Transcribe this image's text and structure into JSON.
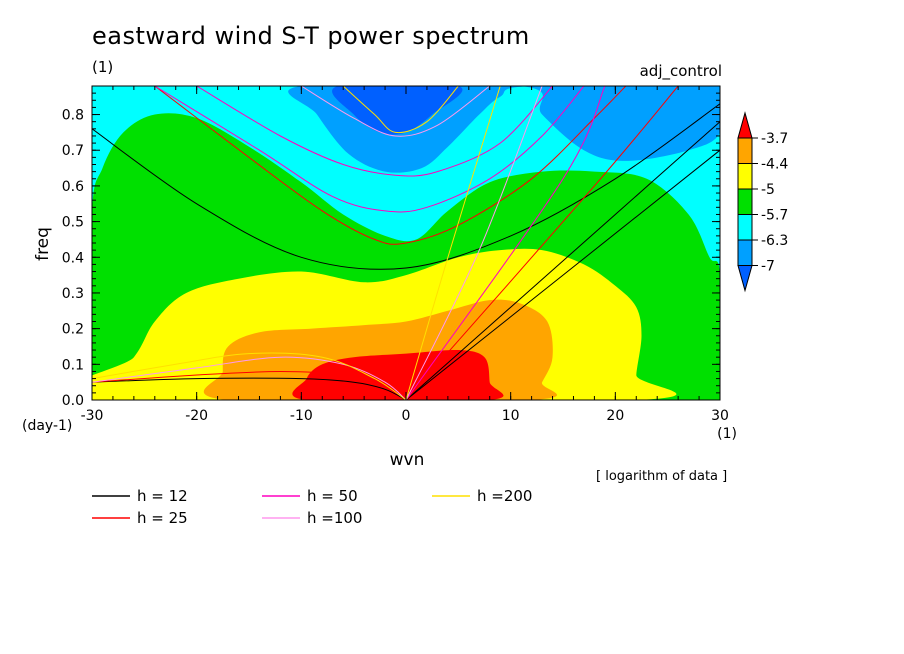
{
  "chart_data": {
    "type": "heatmap",
    "title": "eastward wind S-T power spectrum",
    "subtitle": "(1)",
    "experiment": "adj_control",
    "xlabel": "wvn",
    "xunit": "(1)",
    "ylabel": "freq",
    "yunit": "(day-1)",
    "note": "[ logarithm of data ]",
    "xlim": [
      -30,
      30
    ],
    "ylim": [
      0,
      0.88
    ],
    "xticks": [
      "-30",
      "-20",
      "-10",
      "0",
      "10",
      "20",
      "30"
    ],
    "yticks": [
      "0.0",
      "0.1",
      "0.2",
      "0.3",
      "0.4",
      "0.5",
      "0.6",
      "0.7",
      "0.8"
    ],
    "colorbar": {
      "levels": [
        "-3.7",
        "-4.4",
        "-5",
        "-5.7",
        "-6.3",
        "-7"
      ],
      "colors": [
        "#ff0000",
        "#ffa500",
        "#ffff00",
        "#00e000",
        "#00ffff",
        "#00a0ff",
        "#0060ff"
      ]
    },
    "fill_regions": [
      {
        "level": "below -7",
        "color": "#0060ff",
        "points": [
          [
            -6.5,
            0.88
          ],
          [
            -5,
            0.8
          ],
          [
            -2.5,
            0.75
          ],
          [
            0,
            0.75
          ],
          [
            2.5,
            0.8
          ],
          [
            5,
            0.88
          ]
        ]
      },
      {
        "level": "-7 to -6.3",
        "color": "#00a0ff",
        "points": [
          [
            -10,
            0.88
          ],
          [
            -8.5,
            0.8
          ],
          [
            -5.5,
            0.69
          ],
          [
            -2,
            0.64
          ],
          [
            1.5,
            0.65
          ],
          [
            4,
            0.71
          ],
          [
            7,
            0.8
          ],
          [
            9,
            0.85
          ],
          [
            12,
            0.88
          ],
          [
            30,
            0.88
          ],
          [
            30,
            0.75
          ],
          [
            27,
            0.7
          ],
          [
            21,
            0.67
          ],
          [
            17,
            0.7
          ],
          [
            13,
            0.8
          ],
          [
            11,
            0.88
          ]
        ]
      },
      {
        "level": "-6.3 to -5.7",
        "color": "#00ffff",
        "points": [
          [
            -30,
            0.88
          ],
          [
            30,
            0.88
          ],
          [
            30,
            0.0
          ],
          [
            -30,
            0.0
          ]
        ]
      },
      {
        "level": "-5.7 to -5",
        "color": "#00e000",
        "points": [
          [
            -30,
            0.52
          ],
          [
            -29,
            0.65
          ],
          [
            -27,
            0.75
          ],
          [
            -24,
            0.8
          ],
          [
            -20,
            0.79
          ],
          [
            -15,
            0.71
          ],
          [
            -10,
            0.61
          ],
          [
            -6,
            0.52
          ],
          [
            -2,
            0.46
          ],
          [
            1,
            0.45
          ],
          [
            4,
            0.53
          ],
          [
            8,
            0.61
          ],
          [
            13,
            0.64
          ],
          [
            18,
            0.64
          ],
          [
            23,
            0.62
          ],
          [
            27,
            0.52
          ],
          [
            29,
            0.4
          ],
          [
            30,
            0.35
          ],
          [
            30,
            0.0
          ],
          [
            -30,
            0.0
          ]
        ]
      },
      {
        "level": "-5 to -4.4",
        "color": "#ffff00",
        "points": [
          [
            -30,
            0.0
          ],
          [
            -26,
            0.12
          ],
          [
            -24,
            0.22
          ],
          [
            -21,
            0.3
          ],
          [
            -16,
            0.34
          ],
          [
            -10,
            0.36
          ],
          [
            -4,
            0.33
          ],
          [
            0,
            0.35
          ],
          [
            5,
            0.4
          ],
          [
            9,
            0.42
          ],
          [
            13,
            0.42
          ],
          [
            17,
            0.38
          ],
          [
            20,
            0.32
          ],
          [
            22,
            0.26
          ],
          [
            22.5,
            0.18
          ],
          [
            22,
            0.07
          ],
          [
            22,
            0.0
          ]
        ]
      },
      {
        "level": "-4.4 to -3.7",
        "color": "#ffa500",
        "points": [
          [
            -17,
            0.0
          ],
          [
            -17.5,
            0.08
          ],
          [
            -17,
            0.15
          ],
          [
            -14,
            0.19
          ],
          [
            -9,
            0.2
          ],
          [
            -4,
            0.21
          ],
          [
            0,
            0.22
          ],
          [
            4,
            0.25
          ],
          [
            8,
            0.28
          ],
          [
            11,
            0.27
          ],
          [
            13.5,
            0.22
          ],
          [
            14,
            0.12
          ],
          [
            13,
            0.05
          ],
          [
            12,
            0.0
          ]
        ]
      },
      {
        "level": "above -3.7",
        "color": "#ff0000",
        "points": [
          [
            -9.5,
            0.0
          ],
          [
            -9.5,
            0.06
          ],
          [
            -8,
            0.1
          ],
          [
            -5,
            0.12
          ],
          [
            0,
            0.13
          ],
          [
            5,
            0.14
          ],
          [
            7.5,
            0.12
          ],
          [
            8,
            0.05
          ],
          [
            8,
            0.0
          ]
        ]
      }
    ],
    "dispersion_curves": {
      "legend": [
        {
          "label": "h = 12",
          "color": "#000000"
        },
        {
          "label": "h = 25",
          "color": "#ff0000"
        },
        {
          "label": "h = 50",
          "color": "#ff00c0"
        },
        {
          "label": "h =100",
          "color": "#ff99ee"
        },
        {
          "label": "h =200",
          "color": "#ffe000"
        }
      ],
      "lines": [
        {
          "h": "12",
          "color": "#000000",
          "kind": "kelvin",
          "points": [
            [
              0,
              0
            ],
            [
              30,
              0.7
            ]
          ]
        },
        {
          "h": "12",
          "color": "#000000",
          "kind": "ig",
          "points": [
            [
              30,
              0.83
            ],
            [
              20,
              0.62
            ],
            [
              10,
              0.46
            ],
            [
              0,
              0.37
            ],
            [
              -10,
              0.4
            ],
            [
              -20,
              0.55
            ],
            [
              -30,
              0.76
            ]
          ]
        },
        {
          "h": "12",
          "color": "#000000",
          "kind": "rossby",
          "points": [
            [
              -30,
              0.05
            ],
            [
              -20,
              0.06
            ],
            [
              -10,
              0.06
            ],
            [
              -5,
              0.05
            ],
            [
              -2,
              0.03
            ],
            [
              0,
              0.0
            ]
          ]
        },
        {
          "h": "12",
          "color": "#000000",
          "kind": "mrg",
          "points": [
            [
              0,
              0
            ],
            [
              10,
              0.26
            ],
            [
              20,
              0.52
            ],
            [
              30,
              0.78
            ]
          ]
        },
        {
          "h": "25",
          "color": "#ff0000",
          "kind": "kelvin",
          "points": [
            [
              0,
              0
            ],
            [
              18,
              0.6
            ],
            [
              26,
              0.88
            ]
          ]
        },
        {
          "h": "25",
          "color": "#ff0000",
          "kind": "ig",
          "points": [
            [
              -24,
              0.88
            ],
            [
              -15,
              0.68
            ],
            [
              -8,
              0.53
            ],
            [
              -3,
              0.45
            ],
            [
              0,
              0.44
            ],
            [
              5,
              0.49
            ],
            [
              12,
              0.62
            ],
            [
              18,
              0.79
            ],
            [
              21,
              0.88
            ]
          ]
        },
        {
          "h": "25",
          "color": "#ff0000",
          "kind": "rossby",
          "points": [
            [
              -30,
              0.05
            ],
            [
              -20,
              0.07
            ],
            [
              -12,
              0.08
            ],
            [
              -6,
              0.07
            ],
            [
              -2,
              0.04
            ],
            [
              0,
              0.0
            ]
          ]
        },
        {
          "h": "50",
          "color": "#ff00c0",
          "kind": "kelvin",
          "points": [
            [
              0,
              0
            ],
            [
              15,
              0.62
            ],
            [
              19,
              0.88
            ]
          ]
        },
        {
          "h": "50",
          "color": "#ff00c0",
          "kind": "ig",
          "points": [
            [
              -24,
              0.88
            ],
            [
              -14,
              0.7
            ],
            [
              -7,
              0.57
            ],
            [
              -2,
              0.53
            ],
            [
              2,
              0.54
            ],
            [
              8,
              0.62
            ],
            [
              13,
              0.74
            ],
            [
              17,
              0.88
            ]
          ]
        },
        {
          "h": "50",
          "color": "#ff00c0",
          "kind": "ig2",
          "points": [
            [
              -20,
              0.88
            ],
            [
              -12,
              0.74
            ],
            [
              -6,
              0.66
            ],
            [
              -1,
              0.63
            ],
            [
              3,
              0.64
            ],
            [
              9,
              0.72
            ],
            [
              14,
              0.88
            ]
          ]
        },
        {
          "h": "100",
          "color": "#ff99ee",
          "kind": "kelvin",
          "points": [
            [
              0,
              0
            ],
            [
              7,
              0.42
            ],
            [
              13,
              0.88
            ]
          ]
        },
        {
          "h": "100",
          "color": "#ff99ee",
          "kind": "ig",
          "points": [
            [
              -10,
              0.88
            ],
            [
              -5,
              0.79
            ],
            [
              -1,
              0.74
            ],
            [
              3,
              0.77
            ],
            [
              8,
              0.88
            ]
          ]
        },
        {
          "h": "100",
          "color": "#ff99ee",
          "kind": "rossby",
          "points": [
            [
              -30,
              0.05
            ],
            [
              -20,
              0.09
            ],
            [
              -12,
              0.12
            ],
            [
              -6,
              0.1
            ],
            [
              -2,
              0.05
            ],
            [
              0,
              0.0
            ]
          ]
        },
        {
          "h": "200",
          "color": "#ffe000",
          "kind": "kelvin",
          "points": [
            [
              0,
              0
            ],
            [
              4,
              0.4
            ],
            [
              9,
              0.88
            ]
          ]
        },
        {
          "h": "200",
          "color": "#ffe000",
          "kind": "ig",
          "points": [
            [
              -6,
              0.88
            ],
            [
              -3,
              0.8
            ],
            [
              -1,
              0.75
            ],
            [
              2,
              0.78
            ],
            [
              5,
              0.88
            ]
          ]
        },
        {
          "h": "200",
          "color": "#ffe000",
          "kind": "rossby",
          "points": [
            [
              -30,
              0.06
            ],
            [
              -22,
              0.1
            ],
            [
              -15,
              0.13
            ],
            [
              -8,
              0.12
            ],
            [
              -3,
              0.06
            ],
            [
              0,
              0.0
            ]
          ]
        }
      ]
    }
  }
}
